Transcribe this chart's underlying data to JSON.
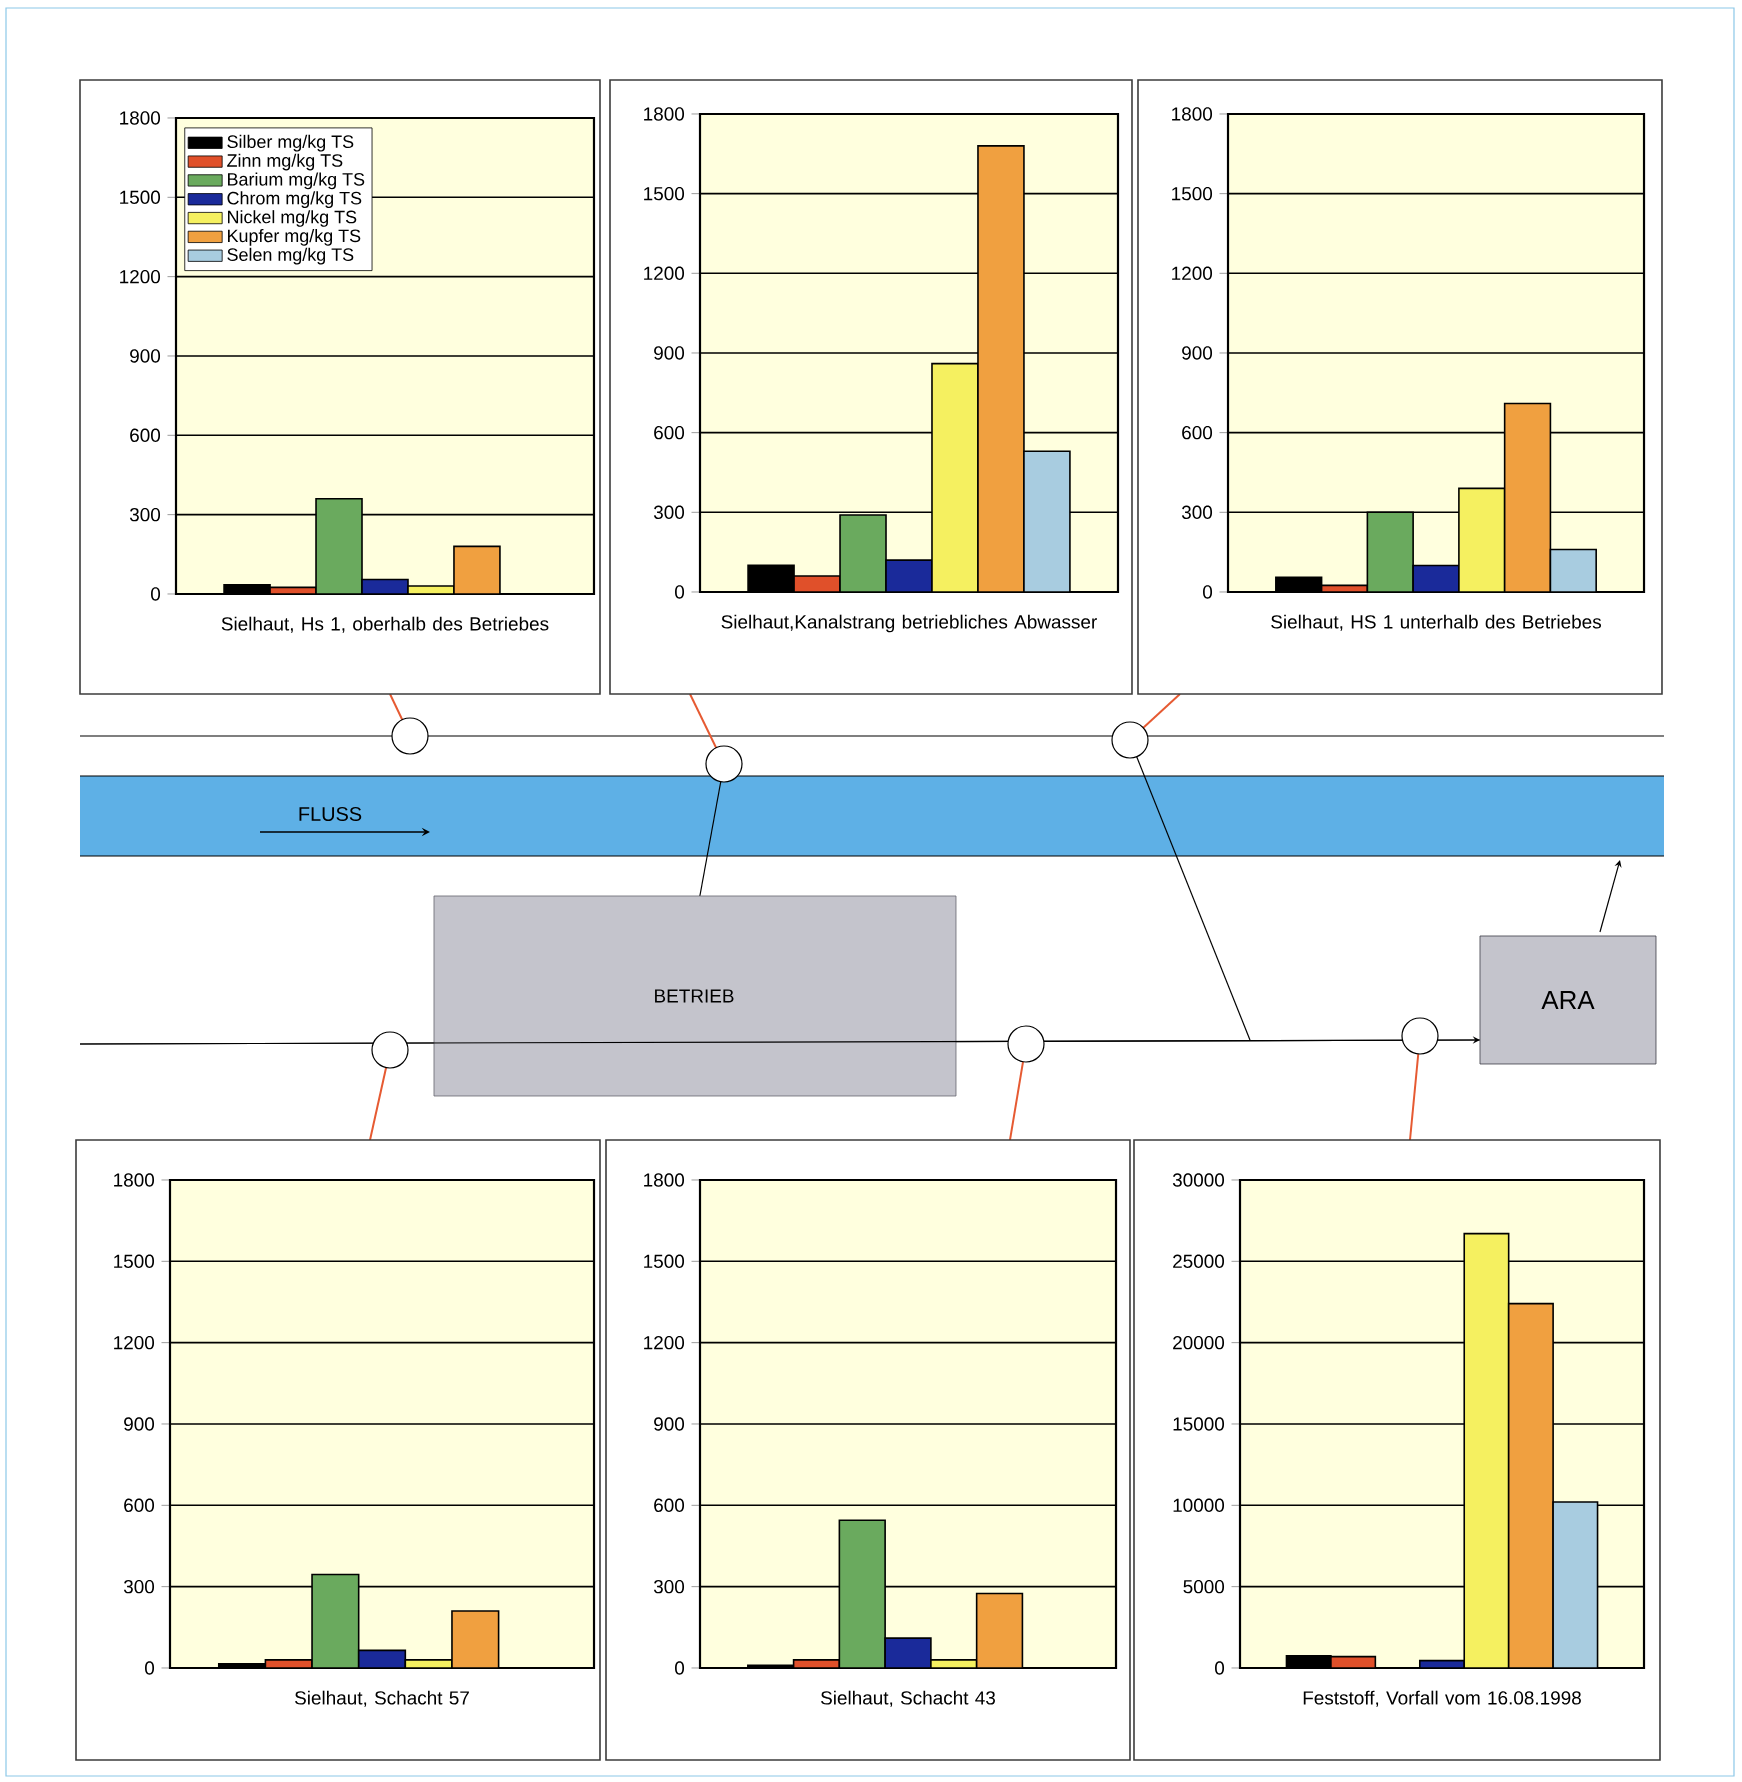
{
  "chart_data": [
    {
      "type": "bar",
      "xlabel": "Sielhaut, Hs 1, oberhalb des Betriebes",
      "categories": [
        null
      ],
      "ylim": [
        0,
        1800
      ],
      "yticks": [
        0,
        300,
        600,
        900,
        1200,
        1500,
        1800
      ],
      "grid": "y",
      "legend": "top left",
      "series": [
        {
          "name": "Silber mg/kg TS",
          "color": "#000000",
          "values": [
            35
          ]
        },
        {
          "name": "Zinn mg/kg TS",
          "color": "#e0502a",
          "values": [
            25
          ]
        },
        {
          "name": "Barium mg/kg TS",
          "color": "#6aaa5e",
          "values": [
            360
          ]
        },
        {
          "name": "Chrom mg/kg TS",
          "color": "#1a2a9a",
          "values": [
            55
          ]
        },
        {
          "name": "Nickel mg/kg TS",
          "color": "#f5f060",
          "values": [
            30
          ]
        },
        {
          "name": "Kupfer mg/kg TS",
          "color": "#f0a040",
          "values": [
            180
          ]
        },
        {
          "name": "Selen mg/kg TS",
          "color": "#a8cce0",
          "values": [
            null
          ]
        }
      ]
    },
    {
      "type": "bar",
      "xlabel": "Sielhaut,Kanalstrang betriebliches Abwasser",
      "categories": [
        null
      ],
      "ylim": [
        0,
        1800
      ],
      "yticks": [
        0,
        300,
        600,
        900,
        1200,
        1500,
        1800
      ],
      "grid": "y",
      "series": [
        {
          "color": "#000000",
          "values": [
            100
          ]
        },
        {
          "color": "#e0502a",
          "values": [
            60
          ]
        },
        {
          "color": "#6aaa5e",
          "values": [
            290
          ]
        },
        {
          "color": "#1a2a9a",
          "values": [
            120
          ]
        },
        {
          "color": "#f5f060",
          "values": [
            860
          ]
        },
        {
          "color": "#f0a040",
          "values": [
            1680
          ]
        },
        {
          "color": "#a8cce0",
          "values": [
            530
          ]
        }
      ]
    },
    {
      "type": "bar",
      "xlabel": "Sielhaut, HS 1 unterhalb des Betriebes",
      "categories": [
        null
      ],
      "ylim": [
        0,
        1800
      ],
      "yticks": [
        0,
        300,
        600,
        900,
        1200,
        1500,
        1800
      ],
      "grid": "y",
      "series": [
        {
          "color": "#000000",
          "values": [
            55
          ]
        },
        {
          "color": "#e0502a",
          "values": [
            25
          ]
        },
        {
          "color": "#6aaa5e",
          "values": [
            300
          ]
        },
        {
          "color": "#1a2a9a",
          "values": [
            100
          ]
        },
        {
          "color": "#f5f060",
          "values": [
            390
          ]
        },
        {
          "color": "#f0a040",
          "values": [
            710
          ]
        },
        {
          "color": "#a8cce0",
          "values": [
            160
          ]
        }
      ]
    },
    {
      "type": "bar",
      "xlabel": "Sielhaut, Schacht 57",
      "categories": [
        null
      ],
      "ylim": [
        0,
        1800
      ],
      "yticks": [
        0,
        300,
        600,
        900,
        1200,
        1500,
        1800
      ],
      "grid": "y",
      "series": [
        {
          "color": "#000000",
          "values": [
            15
          ]
        },
        {
          "color": "#e0502a",
          "values": [
            30
          ]
        },
        {
          "color": "#6aaa5e",
          "values": [
            345
          ]
        },
        {
          "color": "#1a2a9a",
          "values": [
            65
          ]
        },
        {
          "color": "#f5f060",
          "values": [
            30
          ]
        },
        {
          "color": "#f0a040",
          "values": [
            210
          ]
        },
        {
          "color": "#a8cce0",
          "values": [
            null
          ]
        }
      ]
    },
    {
      "type": "bar",
      "xlabel": "Sielhaut, Schacht 43",
      "categories": [
        null
      ],
      "ylim": [
        0,
        1800
      ],
      "yticks": [
        0,
        300,
        600,
        900,
        1200,
        1500,
        1800
      ],
      "grid": "y",
      "series": [
        {
          "color": "#000000",
          "values": [
            10
          ]
        },
        {
          "color": "#e0502a",
          "values": [
            30
          ]
        },
        {
          "color": "#6aaa5e",
          "values": [
            545
          ]
        },
        {
          "color": "#1a2a9a",
          "values": [
            110
          ]
        },
        {
          "color": "#f5f060",
          "values": [
            30
          ]
        },
        {
          "color": "#f0a040",
          "values": [
            275
          ]
        },
        {
          "color": "#a8cce0",
          "values": [
            null
          ]
        }
      ]
    },
    {
      "type": "bar",
      "xlabel": "Feststoff, Vorfall vom 16.08.1998",
      "categories": [
        null
      ],
      "ylim": [
        0,
        30000
      ],
      "yticks": [
        0,
        5000,
        10000,
        15000,
        20000,
        25000,
        30000
      ],
      "grid": "y",
      "series": [
        {
          "color": "#000000",
          "values": [
            750
          ]
        },
        {
          "color": "#e0502a",
          "values": [
            700
          ]
        },
        {
          "color": "#6aaa5e",
          "values": [
            null
          ]
        },
        {
          "color": "#1a2a9a",
          "values": [
            450
          ]
        },
        {
          "color": "#f5f060",
          "values": [
            26700
          ]
        },
        {
          "color": "#f0a040",
          "values": [
            22400
          ]
        },
        {
          "color": "#a8cce0",
          "values": [
            10200
          ]
        }
      ]
    },
    {
      "type": "other",
      "annotations": [
        "FLUSS",
        "BETRIEB",
        "ARA"
      ]
    }
  ]
}
